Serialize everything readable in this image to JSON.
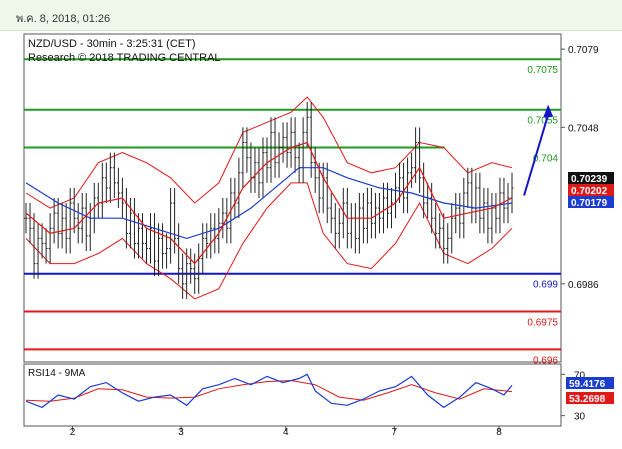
{
  "header": {
    "datetime": "พ.ค. 8, 2018, 01:26"
  },
  "chart_data": [
    {
      "type": "line",
      "title": "NZD/USD - 30min - 3:25:31 (CET)",
      "subtitle": "Research © 2018 TRADING CENTRAL",
      "ylim": [
        0.6955,
        0.7085
      ],
      "x_ticks": [
        {
          "label": "2",
          "x": 12
        },
        {
          "label": "3",
          "x": 40
        },
        {
          "label": "4",
          "x": 67
        },
        {
          "label": "7",
          "x": 95
        },
        {
          "label": "8",
          "x": 122
        }
      ],
      "y_ticks": [
        {
          "label": "0.7079",
          "value": 0.7079
        },
        {
          "label": "0.7048",
          "value": 0.7048
        },
        {
          "label": "0.6986",
          "value": 0.6986
        }
      ],
      "levels": [
        {
          "label": "0.7075",
          "value": 0.7075,
          "color": "#1e9a1e",
          "x_end": 138
        },
        {
          "label": "0.7055",
          "value": 0.7055,
          "color": "#1e9a1e",
          "x_end": 138
        },
        {
          "label": "0.704",
          "value": 0.704,
          "color": "#1e9a1e",
          "x_end": 108
        },
        {
          "label": "0.699",
          "value": 0.699,
          "color": "#1414c8",
          "x_end": 138
        },
        {
          "label": "0.6975",
          "value": 0.6975,
          "color": "#e01818",
          "x_end": 138
        },
        {
          "label": "0.696",
          "value": 0.696,
          "color": "#e01818",
          "x_end": 138
        }
      ],
      "price_badges": [
        {
          "label": "0.70239",
          "value": 0.70239,
          "color": "#111111"
        },
        {
          "label": "0.70202",
          "value": 0.70202,
          "color": "#e01818"
        },
        {
          "label": "0.70179",
          "value": 0.70179,
          "color": "#1a3ccf"
        }
      ],
      "forecast_arrow": {
        "from_x": 124,
        "from_y": 0.7021,
        "to_x": 130,
        "to_y": 0.7057,
        "color": "#1414c8"
      },
      "x_domain": [
        0,
        138
      ],
      "price_path": [
        [
          0,
          0.7012
        ],
        [
          1,
          0.7008
        ],
        [
          2,
          0.6994
        ],
        [
          3,
          0.7004
        ],
        [
          4,
          0.7002
        ],
        [
          5,
          0.7
        ],
        [
          6,
          0.7008
        ],
        [
          7,
          0.7014
        ],
        [
          8,
          0.7006
        ],
        [
          9,
          0.7012
        ],
        [
          10,
          0.7004
        ],
        [
          11,
          0.7018
        ],
        [
          12,
          0.7012
        ],
        [
          13,
          0.7008
        ],
        [
          14,
          0.7016
        ],
        [
          15,
          0.7005
        ],
        [
          16,
          0.7012
        ],
        [
          17,
          0.702
        ],
        [
          18,
          0.7018
        ],
        [
          19,
          0.7028
        ],
        [
          20,
          0.7024
        ],
        [
          21,
          0.7032
        ],
        [
          22,
          0.7026
        ],
        [
          23,
          0.7022
        ],
        [
          24,
          0.7018
        ],
        [
          25,
          0.7006
        ],
        [
          26,
          0.7014
        ],
        [
          27,
          0.7002
        ],
        [
          28,
          0.7008
        ],
        [
          29,
          0.7002
        ],
        [
          30,
          0.7
        ],
        [
          31,
          0.7008
        ],
        [
          32,
          0.6995
        ],
        [
          33,
          0.7004
        ],
        [
          34,
          0.6998
        ],
        [
          35,
          0.7
        ],
        [
          36,
          0.7018
        ],
        [
          37,
          0.7004
        ],
        [
          38,
          0.6992
        ],
        [
          39,
          0.6986
        ],
        [
          40,
          0.6994
        ],
        [
          41,
          0.6992
        ],
        [
          42,
          0.6988
        ],
        [
          43,
          0.6996
        ],
        [
          44,
          0.7004
        ],
        [
          45,
          0.7002
        ],
        [
          46,
          0.7008
        ],
        [
          47,
          0.7004
        ],
        [
          48,
          0.701
        ],
        [
          49,
          0.7014
        ],
        [
          50,
          0.7008
        ],
        [
          51,
          0.7022
        ],
        [
          52,
          0.7018
        ],
        [
          53,
          0.703
        ],
        [
          54,
          0.7042
        ],
        [
          55,
          0.7036
        ],
        [
          56,
          0.7028
        ],
        [
          57,
          0.7034
        ],
        [
          58,
          0.7026
        ],
        [
          59,
          0.7038
        ],
        [
          60,
          0.7032
        ],
        [
          61,
          0.7046
        ],
        [
          62,
          0.7034
        ],
        [
          63,
          0.704
        ],
        [
          64,
          0.7044
        ],
        [
          65,
          0.7038
        ],
        [
          66,
          0.7046
        ],
        [
          67,
          0.7036
        ],
        [
          68,
          0.7032
        ],
        [
          69,
          0.7046
        ],
        [
          70,
          0.7052
        ],
        [
          71,
          0.7034
        ],
        [
          72,
          0.7028
        ],
        [
          73,
          0.702
        ],
        [
          74,
          0.7028
        ],
        [
          75,
          0.7016
        ],
        [
          76,
          0.7012
        ],
        [
          77,
          0.7006
        ],
        [
          78,
          0.701
        ],
        [
          79,
          0.7018
        ],
        [
          80,
          0.7006
        ],
        [
          81,
          0.7012
        ],
        [
          82,
          0.7004
        ],
        [
          83,
          0.7016
        ],
        [
          84,
          0.7008
        ],
        [
          85,
          0.7018
        ],
        [
          86,
          0.701
        ],
        [
          87,
          0.7016
        ],
        [
          88,
          0.7012
        ],
        [
          89,
          0.702
        ],
        [
          90,
          0.7014
        ],
        [
          91,
          0.7018
        ],
        [
          92,
          0.7024
        ],
        [
          93,
          0.7028
        ],
        [
          94,
          0.702
        ],
        [
          95,
          0.703
        ],
        [
          96,
          0.7032
        ],
        [
          97,
          0.7042
        ],
        [
          98,
          0.7028
        ],
        [
          99,
          0.7018
        ],
        [
          100,
          0.702
        ],
        [
          101,
          0.7012
        ],
        [
          102,
          0.7006
        ],
        [
          103,
          0.7008
        ],
        [
          104,
          0.7
        ],
        [
          105,
          0.7004
        ],
        [
          106,
          0.7012
        ],
        [
          107,
          0.7016
        ],
        [
          108,
          0.701
        ],
        [
          109,
          0.7022
        ],
        [
          110,
          0.7026
        ],
        [
          111,
          0.7016
        ],
        [
          112,
          0.7024
        ],
        [
          113,
          0.7012
        ],
        [
          114,
          0.7018
        ],
        [
          115,
          0.7008
        ],
        [
          116,
          0.7016
        ],
        [
          117,
          0.7012
        ],
        [
          118,
          0.7022
        ],
        [
          119,
          0.7016
        ],
        [
          120,
          0.702
        ],
        [
          121,
          0.7024
        ]
      ],
      "ma_slow": [
        [
          0,
          0.7026
        ],
        [
          8,
          0.7018
        ],
        [
          16,
          0.7012
        ],
        [
          24,
          0.7012
        ],
        [
          32,
          0.7008
        ],
        [
          40,
          0.7004
        ],
        [
          48,
          0.7008
        ],
        [
          56,
          0.7016
        ],
        [
          62,
          0.7024
        ],
        [
          68,
          0.7032
        ],
        [
          74,
          0.7032
        ],
        [
          80,
          0.7028
        ],
        [
          88,
          0.7024
        ],
        [
          96,
          0.7022
        ],
        [
          104,
          0.7018
        ],
        [
          112,
          0.7016
        ],
        [
          121,
          0.7018
        ]
      ],
      "ma_fast": [
        [
          0,
          0.7014
        ],
        [
          6,
          0.7006
        ],
        [
          12,
          0.7008
        ],
        [
          18,
          0.7018
        ],
        [
          24,
          0.702
        ],
        [
          30,
          0.7008
        ],
        [
          36,
          0.7004
        ],
        [
          42,
          0.6994
        ],
        [
          48,
          0.7006
        ],
        [
          54,
          0.7024
        ],
        [
          60,
          0.7034
        ],
        [
          66,
          0.704
        ],
        [
          70,
          0.7042
        ],
        [
          74,
          0.7028
        ],
        [
          80,
          0.7012
        ],
        [
          86,
          0.7012
        ],
        [
          92,
          0.7018
        ],
        [
          98,
          0.7032
        ],
        [
          104,
          0.7012
        ],
        [
          110,
          0.7014
        ],
        [
          116,
          0.7016
        ],
        [
          121,
          0.702
        ]
      ],
      "band_upper": [
        [
          0,
          0.7022
        ],
        [
          6,
          0.7016
        ],
        [
          12,
          0.702
        ],
        [
          18,
          0.7034
        ],
        [
          24,
          0.7038
        ],
        [
          30,
          0.7034
        ],
        [
          36,
          0.7028
        ],
        [
          42,
          0.7018
        ],
        [
          48,
          0.7026
        ],
        [
          54,
          0.7046
        ],
        [
          60,
          0.705
        ],
        [
          66,
          0.7054
        ],
        [
          70,
          0.706
        ],
        [
          74,
          0.7052
        ],
        [
          80,
          0.7034
        ],
        [
          86,
          0.703
        ],
        [
          92,
          0.7032
        ],
        [
          98,
          0.7042
        ],
        [
          104,
          0.704
        ],
        [
          110,
          0.703
        ],
        [
          116,
          0.7034
        ],
        [
          121,
          0.7032
        ]
      ],
      "band_lower": [
        [
          0,
          0.7004
        ],
        [
          6,
          0.6994
        ],
        [
          12,
          0.6994
        ],
        [
          18,
          0.6998
        ],
        [
          24,
          0.7004
        ],
        [
          30,
          0.6994
        ],
        [
          36,
          0.6988
        ],
        [
          42,
          0.698
        ],
        [
          48,
          0.6984
        ],
        [
          54,
          0.7002
        ],
        [
          60,
          0.7016
        ],
        [
          66,
          0.7026
        ],
        [
          70,
          0.7026
        ],
        [
          74,
          0.7006
        ],
        [
          80,
          0.6994
        ],
        [
          86,
          0.6992
        ],
        [
          92,
          0.7002
        ],
        [
          98,
          0.7018
        ],
        [
          104,
          0.6998
        ],
        [
          110,
          0.6994
        ],
        [
          116,
          0.7
        ],
        [
          121,
          0.7008
        ]
      ]
    },
    {
      "type": "line",
      "title": "RSI14 - 9MA",
      "ylim": [
        20,
        80
      ],
      "y_ticks": [
        {
          "label": "70",
          "value": 70
        },
        {
          "label": "30",
          "value": 30
        }
      ],
      "badges": [
        {
          "label": "59.4176",
          "value": 59.4176,
          "color": "#1a3ccf"
        },
        {
          "label": "53.2698",
          "value": 53.2698,
          "color": "#e01818"
        }
      ],
      "rsi": [
        [
          0,
          44
        ],
        [
          4,
          38
        ],
        [
          8,
          50
        ],
        [
          12,
          46
        ],
        [
          16,
          58
        ],
        [
          20,
          62
        ],
        [
          24,
          52
        ],
        [
          28,
          44
        ],
        [
          32,
          48
        ],
        [
          36,
          50
        ],
        [
          40,
          40
        ],
        [
          44,
          56
        ],
        [
          48,
          60
        ],
        [
          52,
          66
        ],
        [
          56,
          60
        ],
        [
          60,
          68
        ],
        [
          64,
          62
        ],
        [
          68,
          66
        ],
        [
          70,
          70
        ],
        [
          72,
          54
        ],
        [
          76,
          42
        ],
        [
          80,
          40
        ],
        [
          84,
          46
        ],
        [
          88,
          54
        ],
        [
          92,
          58
        ],
        [
          96,
          68
        ],
        [
          100,
          50
        ],
        [
          104,
          38
        ],
        [
          108,
          48
        ],
        [
          112,
          62
        ],
        [
          116,
          56
        ],
        [
          119,
          50
        ],
        [
          121,
          59.4
        ]
      ],
      "rsi_ma": [
        [
          0,
          45
        ],
        [
          6,
          44
        ],
        [
          12,
          47
        ],
        [
          18,
          56
        ],
        [
          24,
          55
        ],
        [
          30,
          48
        ],
        [
          36,
          47
        ],
        [
          42,
          48
        ],
        [
          48,
          56
        ],
        [
          54,
          60
        ],
        [
          60,
          63
        ],
        [
          66,
          64
        ],
        [
          72,
          60
        ],
        [
          78,
          48
        ],
        [
          84,
          45
        ],
        [
          90,
          52
        ],
        [
          96,
          60
        ],
        [
          102,
          52
        ],
        [
          108,
          46
        ],
        [
          114,
          56
        ],
        [
          121,
          53.3
        ]
      ]
    }
  ]
}
